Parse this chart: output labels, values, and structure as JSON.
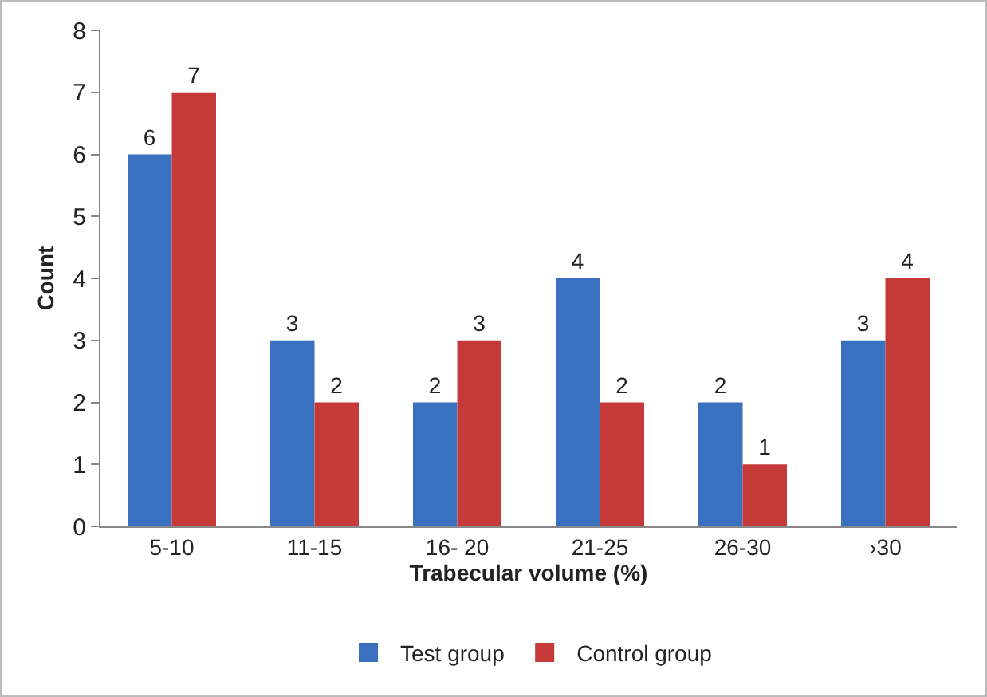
{
  "chart_data": {
    "type": "bar",
    "xlabel": "Trabecular volume (%)",
    "ylabel": "Count",
    "categories": [
      "5-10",
      "11-15",
      "16- 20",
      "21-25",
      "26-30",
      "›30"
    ],
    "series": [
      {
        "name": "Test group",
        "color": "#3a70c0",
        "values": [
          6,
          3,
          2,
          4,
          2,
          3
        ]
      },
      {
        "name": "Control group",
        "color": "#c53a38",
        "values": [
          7,
          2,
          3,
          2,
          1,
          4
        ]
      }
    ],
    "ylim": [
      0,
      8
    ],
    "yticks": [
      0,
      1,
      2,
      3,
      4,
      5,
      6,
      7,
      8
    ],
    "grid": false,
    "legend": "bottom",
    "data_labels": true
  }
}
